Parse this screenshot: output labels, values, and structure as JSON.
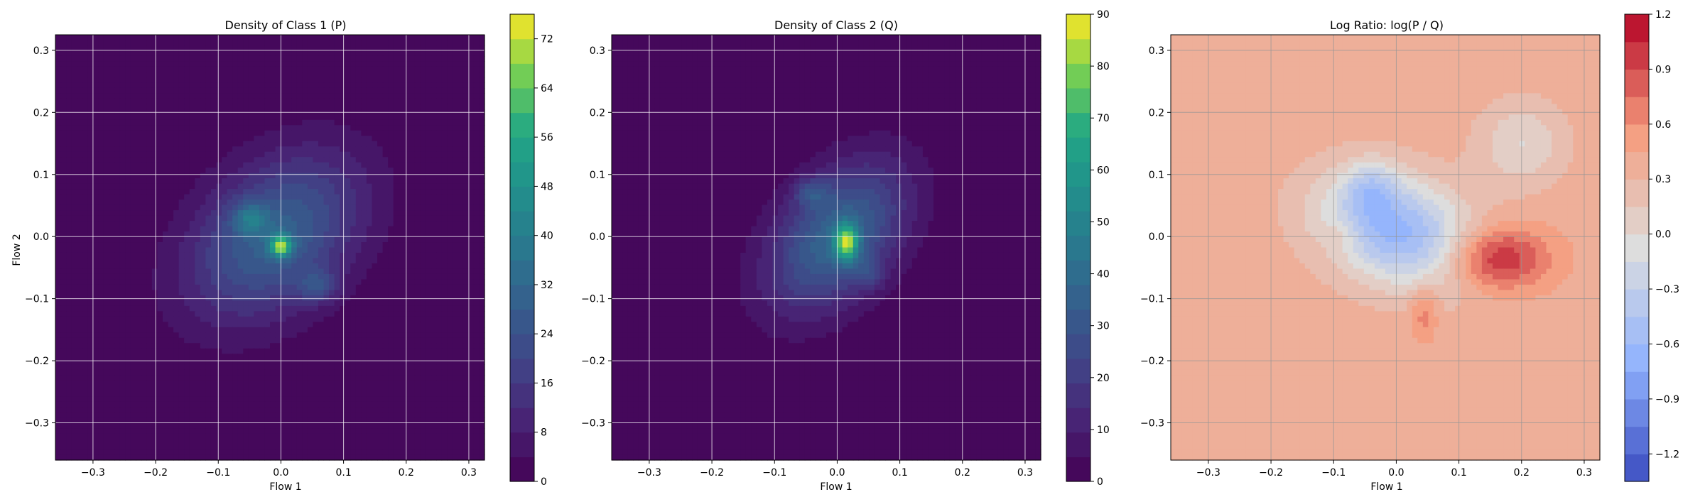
{
  "chart_data": [
    {
      "type": "heatmap",
      "title": "Density of Class 1 (P)",
      "xlabel": "Flow 1",
      "ylabel": "Flow 2",
      "xlim": [
        -0.36,
        0.325
      ],
      "ylim": [
        -0.36,
        0.325
      ],
      "x_ticks": [
        "−0.3",
        "−0.2",
        "−0.1",
        "0.0",
        "0.1",
        "0.2",
        "0.3"
      ],
      "y_ticks": [
        "−0.3",
        "−0.2",
        "−0.1",
        "0.0",
        "0.1",
        "0.2",
        "0.3"
      ],
      "grid": true,
      "colormap": "viridis",
      "colorbar": {
        "min": 0,
        "max": 76,
        "ticks": [
          "0",
          "8",
          "16",
          "24",
          "32",
          "40",
          "48",
          "56",
          "64",
          "72"
        ]
      },
      "blobs": [
        {
          "cx": -0.01,
          "cy": 0.0,
          "sx": 0.075,
          "sy": 0.11,
          "angle": -48,
          "peak": 30
        },
        {
          "cx": 0.0,
          "cy": -0.015,
          "sx": 0.012,
          "sy": 0.012,
          "angle": 0,
          "peak": 45
        },
        {
          "cx": -0.05,
          "cy": 0.03,
          "sx": 0.02,
          "sy": 0.018,
          "angle": 0,
          "peak": 18
        },
        {
          "cx": 0.06,
          "cy": -0.08,
          "sx": 0.022,
          "sy": 0.018,
          "angle": 0,
          "peak": 16
        }
      ]
    },
    {
      "type": "heatmap",
      "title": "Density of Class 2 (Q)",
      "xlabel": "Flow 1",
      "ylabel": "",
      "xlim": [
        -0.36,
        0.325
      ],
      "ylim": [
        -0.36,
        0.325
      ],
      "x_ticks": [
        "−0.3",
        "−0.2",
        "−0.1",
        "0.0",
        "0.1",
        "0.2",
        "0.3"
      ],
      "y_ticks": [
        "−0.3",
        "−0.2",
        "−0.1",
        "0.0",
        "0.1",
        "0.2",
        "0.3"
      ],
      "grid": true,
      "colormap": "viridis",
      "colorbar": {
        "min": 0,
        "max": 90,
        "ticks": [
          "0",
          "10",
          "20",
          "30",
          "40",
          "50",
          "60",
          "70",
          "80",
          "90"
        ]
      },
      "blobs": [
        {
          "cx": 0.0,
          "cy": 0.0,
          "sx": 0.06,
          "sy": 0.095,
          "angle": -40,
          "peak": 38
        },
        {
          "cx": 0.015,
          "cy": -0.01,
          "sx": 0.013,
          "sy": 0.02,
          "angle": 0,
          "peak": 55
        },
        {
          "cx": -0.04,
          "cy": 0.07,
          "sx": 0.02,
          "sy": 0.016,
          "angle": 0,
          "peak": 16
        },
        {
          "cx": 0.05,
          "cy": -0.06,
          "sx": 0.018,
          "sy": 0.016,
          "angle": 0,
          "peak": 12
        }
      ]
    },
    {
      "type": "heatmap",
      "title": "Log Ratio: log(P / Q)",
      "xlabel": "Flow 1",
      "ylabel": "",
      "xlim": [
        -0.36,
        0.325
      ],
      "ylim": [
        -0.36,
        0.325
      ],
      "x_ticks": [
        "−0.3",
        "−0.2",
        "−0.1",
        "0.0",
        "0.1",
        "0.2",
        "0.3"
      ],
      "y_ticks": [
        "−0.3",
        "−0.2",
        "−0.1",
        "0.0",
        "0.1",
        "0.2",
        "0.3"
      ],
      "grid": true,
      "colormap": "coolwarm",
      "colorbar": {
        "min": -1.35,
        "max": 1.2,
        "ticks": [
          "−1.2",
          "−0.9",
          "−0.6",
          "−0.3",
          "0.0",
          "0.3",
          "0.6",
          "0.9",
          "1.2"
        ]
      },
      "background_level": 0.4,
      "blobs": [
        {
          "cx": 0.16,
          "cy": -0.035,
          "sx": 0.055,
          "sy": 0.035,
          "angle": 0,
          "peak": 0.75
        },
        {
          "cx": 0.045,
          "cy": -0.12,
          "sx": 0.015,
          "sy": 0.03,
          "angle": 0,
          "peak": 0.35
        },
        {
          "cx": -0.09,
          "cy": 0.0,
          "sx": 0.02,
          "sy": 0.02,
          "angle": 0,
          "peak": 0.2
        },
        {
          "cx": 0.0,
          "cy": 0.01,
          "sx": 0.09,
          "sy": 0.06,
          "angle": -20,
          "peak": -1.05
        },
        {
          "cx": -0.04,
          "cy": 0.08,
          "sx": 0.03,
          "sy": 0.03,
          "angle": 0,
          "peak": -0.4
        },
        {
          "cx": 0.2,
          "cy": 0.15,
          "sx": 0.05,
          "sy": 0.05,
          "angle": 0,
          "peak": -0.4
        }
      ]
    }
  ]
}
